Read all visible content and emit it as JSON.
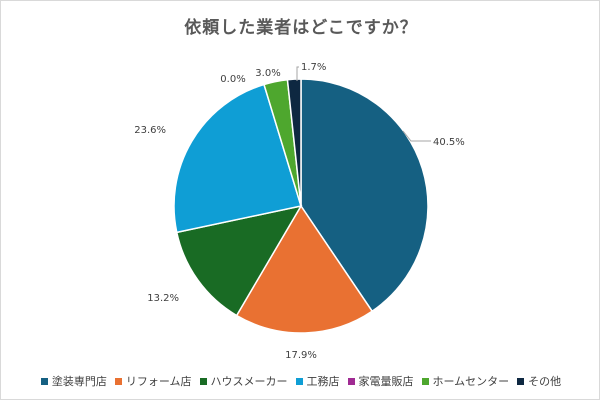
{
  "chart_data": {
    "type": "pie",
    "title": "依頼した業者はどこですか？",
    "categories": [
      "塗装専門店",
      "リフォーム店",
      "ハウスメーカー",
      "工務店",
      "家電量販店",
      "ホームセンター",
      "その他"
    ],
    "values": [
      40.5,
      17.9,
      13.2,
      23.6,
      0.0,
      3.0,
      1.7
    ],
    "labels": [
      "40.5%",
      "17.9%",
      "13.2%",
      "23.6%",
      "0.0%",
      "3.0%",
      "1.7%"
    ],
    "colors": [
      "#156082",
      "#e97132",
      "#196b24",
      "#0f9ed5",
      "#a02b93",
      "#4ea72e",
      "#0e2841"
    ],
    "legend_position": "bottom"
  }
}
